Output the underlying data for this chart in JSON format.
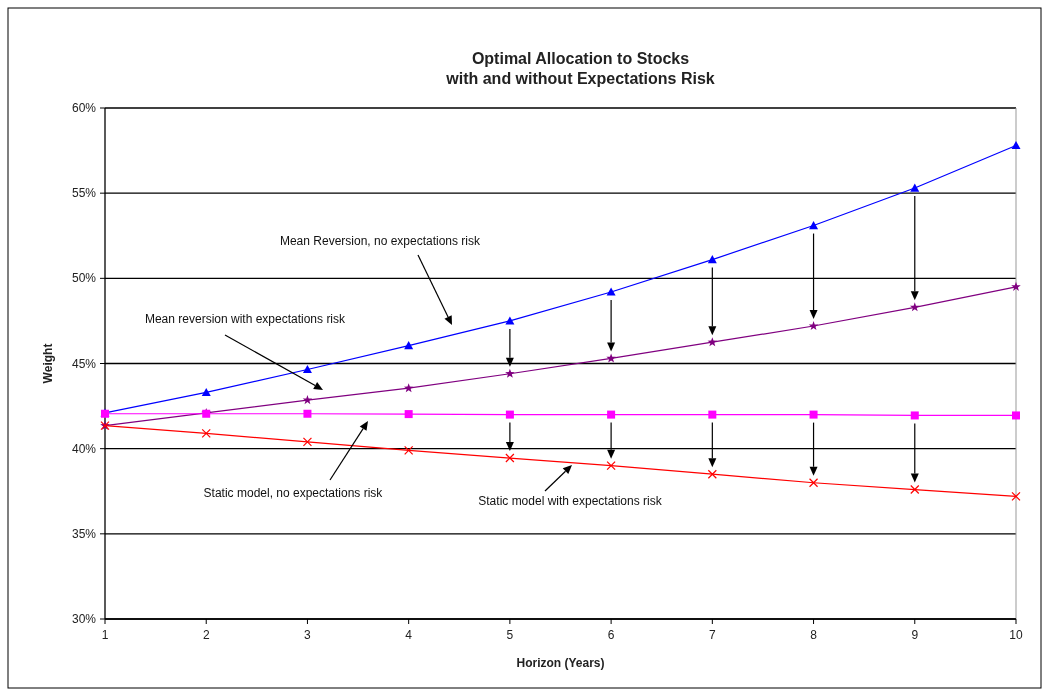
{
  "chart_data": {
    "type": "line",
    "title": "Optimal Allocation to Stocks\nwith and without Expectations Risk",
    "xlabel": "Horizon (Years)",
    "ylabel": "Weight",
    "x": [
      1,
      2,
      3,
      4,
      5,
      6,
      7,
      8,
      9,
      10
    ],
    "series": [
      {
        "color": "#0000ff",
        "marker": "triangle",
        "values": [
          42.1,
          43.3,
          44.65,
          46.05,
          47.5,
          49.2,
          51.1,
          53.1,
          55.3,
          57.8
        ]
      },
      {
        "color": "#800080",
        "marker": "star",
        "values": [
          41.35,
          42.1,
          42.85,
          43.55,
          44.4,
          45.3,
          46.25,
          47.2,
          48.3,
          49.5
        ]
      },
      {
        "color": "#ff00ff",
        "marker": "square",
        "values": [
          42.05,
          42.05,
          42.05,
          42.03,
          42.0,
          42.0,
          42.0,
          42.0,
          41.95,
          41.95
        ]
      },
      {
        "color": "#ff0000",
        "marker": "cross",
        "values": [
          41.35,
          40.9,
          40.4,
          39.9,
          39.45,
          39.0,
          38.5,
          38.0,
          37.6,
          37.2
        ]
      }
    ],
    "annotations": [
      "Mean Reversion, no expectations risk",
      "Mean reversion with expectations risk",
      "Static model, no expectations risk",
      "Static model with expectations risk"
    ],
    "xlim": [
      1,
      10
    ],
    "xticks": [
      1,
      2,
      3,
      4,
      5,
      6,
      7,
      8,
      9,
      10
    ],
    "ylim": [
      30,
      60
    ],
    "yticks": [
      {
        "value": 30,
        "label": "30%"
      },
      {
        "value": 35,
        "label": "35%"
      },
      {
        "value": 40,
        "label": "40%"
      },
      {
        "value": 45,
        "label": "45%"
      },
      {
        "value": 50,
        "label": "50%"
      },
      {
        "value": 55,
        "label": "55%"
      },
      {
        "value": 60,
        "label": "60%"
      }
    ],
    "grid": "y",
    "line_style": "solid"
  }
}
